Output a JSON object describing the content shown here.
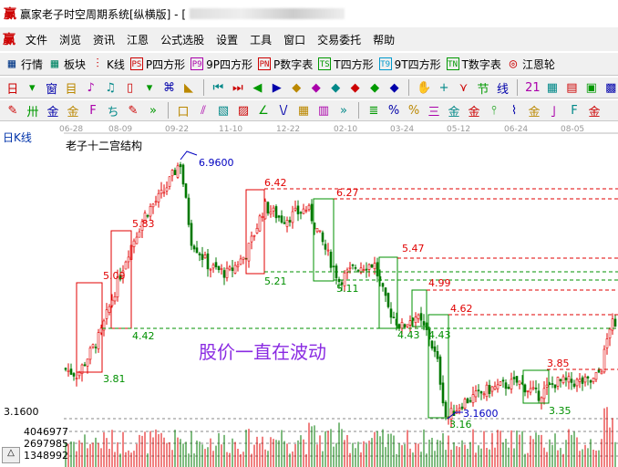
{
  "window": {
    "title": "赢家老子时空周期系统[纵横版] - [",
    "logo": "赢"
  },
  "menu": [
    "文件",
    "浏览",
    "资讯",
    "江恩",
    "公式选股",
    "设置",
    "工具",
    "窗口",
    "交易委托",
    "帮助"
  ],
  "toolbar1": [
    {
      "icon": "grid-table-icon",
      "label": "行情",
      "color": "#0a3d8a"
    },
    {
      "icon": "blocks-icon",
      "label": "板块",
      "color": "#0a8a6a"
    },
    {
      "icon": "candles-icon",
      "label": "K线",
      "color": "#c00"
    },
    {
      "icon": "PS",
      "label": "P四方形",
      "color": "#c00"
    },
    {
      "icon": "P9",
      "label": "9P四方形",
      "color": "#a0a"
    },
    {
      "icon": "PN",
      "label": "P数字表",
      "color": "#c00"
    },
    {
      "icon": "TS",
      "label": "T四方形",
      "color": "#090"
    },
    {
      "icon": "T9",
      "label": "9T四方形",
      "color": "#09c"
    },
    {
      "icon": "TN",
      "label": "T数字表",
      "color": "#090"
    },
    {
      "icon": "target-wheel-icon",
      "label": "江恩轮",
      "color": "#c00"
    }
  ],
  "toolbar2_icons": [
    "日",
    "▾",
    "窗",
    "目",
    "♪",
    "♫",
    "▯",
    "▾",
    "⌘",
    "◣",
    "|",
    "⏮",
    "⏭",
    "◀",
    "▶",
    "◆",
    "◆",
    "◆",
    "◆",
    "◆",
    "◆",
    "|",
    "✋",
    "+",
    "⋎",
    "节",
    "线",
    "|",
    "21",
    "▦",
    "▤",
    "▣",
    "▩"
  ],
  "toolbar3_icons": [
    "✎",
    "卅",
    "金",
    "金",
    "F",
    "ち",
    "✎",
    "»",
    "|",
    "口",
    "⫽",
    "▧",
    "▨",
    "∠",
    "\\/",
    "▦",
    "▥",
    "»",
    "|",
    "≣",
    "%",
    "%",
    "三",
    "金",
    "金",
    "⫯",
    "⌇",
    "金",
    "亅",
    "F",
    "金"
  ],
  "chart": {
    "period_label": "日K线",
    "indicator_name": "老子十二宫结构",
    "dates": [
      "06-28",
      "08-09",
      "09-22",
      "11-10",
      "12-22",
      "02-10",
      "03-24",
      "05-12",
      "06-24",
      "08-05"
    ],
    "high_label": "6.9600",
    "low_label": "3.1600",
    "caption": "股价一直在波动",
    "red_labels": [
      "5.09",
      "5.83",
      "6.42",
      "6.27",
      "5.47",
      "4.99",
      "4.62",
      "3.85"
    ],
    "green_labels": [
      "3.81",
      "4.42",
      "5.21",
      "5.11",
      "4.43",
      "4.43",
      "3.16",
      "3.35"
    ],
    "axis": {
      "price_low": "3.1600",
      "vol1": "4046977",
      "vol2": "2697985",
      "vol3": "1348992"
    },
    "colors": {
      "up": "#e00000",
      "down": "#007800",
      "resist": "#e00000",
      "support": "#009000",
      "extreme": "#0000c0",
      "caption": "#8a2be2"
    }
  },
  "chart_data": {
    "type": "candlestick",
    "price_range": [
      3.16,
      6.96
    ],
    "path": [
      [
        0,
        3.9
      ],
      [
        0.025,
        3.81
      ],
      [
        0.066,
        4.4
      ],
      [
        0.09,
        5.0
      ],
      [
        0.115,
        5.6
      ],
      [
        0.148,
        6.2
      ],
      [
        0.18,
        6.5
      ],
      [
        0.21,
        6.96
      ],
      [
        0.23,
        5.8
      ],
      [
        0.263,
        5.4
      ],
      [
        0.296,
        5.3
      ],
      [
        0.33,
        5.6
      ],
      [
        0.362,
        6.3
      ],
      [
        0.395,
        6.1
      ],
      [
        0.44,
        6.27
      ],
      [
        0.47,
        5.7
      ],
      [
        0.497,
        5.2
      ],
      [
        0.526,
        5.4
      ],
      [
        0.56,
        5.45
      ],
      [
        0.584,
        4.8
      ],
      [
        0.609,
        4.5
      ],
      [
        0.633,
        4.7
      ],
      [
        0.658,
        4.4
      ],
      [
        0.674,
        4.0
      ],
      [
        0.69,
        3.16
      ],
      [
        0.72,
        3.4
      ],
      [
        0.77,
        3.6
      ],
      [
        0.82,
        3.7
      ],
      [
        0.855,
        3.5
      ],
      [
        0.888,
        3.7
      ],
      [
        0.954,
        3.7
      ],
      [
        0.97,
        3.9
      ],
      [
        0.987,
        4.6
      ],
      [
        1,
        4.4
      ]
    ]
  }
}
